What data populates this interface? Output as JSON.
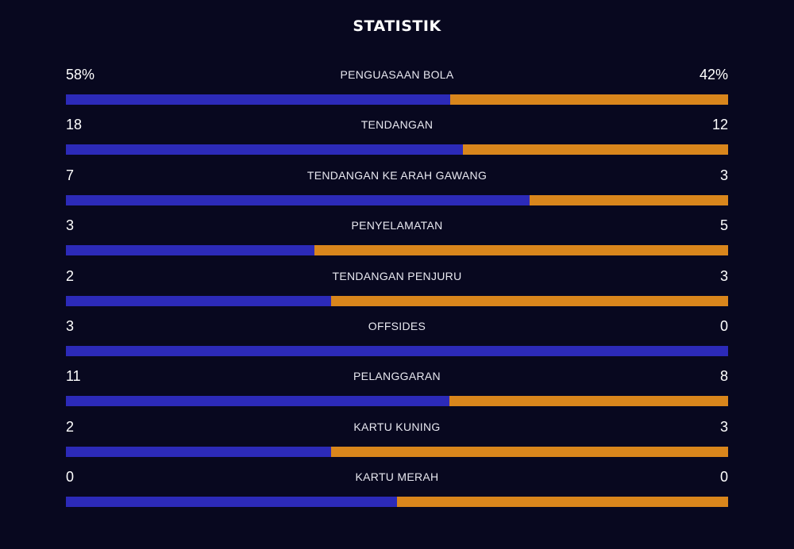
{
  "title": "STATISTIK",
  "colors": {
    "background": "#08081f",
    "home_bar": "#2c2ab8",
    "away_bar": "#d9861c",
    "text": "#ffffff"
  },
  "stats": [
    {
      "label": "PENGUASAAN BOLA",
      "home": "58%",
      "away": "42%",
      "home_share": 0.58
    },
    {
      "label": "TENDANGAN",
      "home": "18",
      "away": "12",
      "home_share": 0.6
    },
    {
      "label": "TENDANGAN KE ARAH GAWANG",
      "home": "7",
      "away": "3",
      "home_share": 0.7
    },
    {
      "label": "PENYELAMATAN",
      "home": "3",
      "away": "5",
      "home_share": 0.375
    },
    {
      "label": "TENDANGAN PENJURU",
      "home": "2",
      "away": "3",
      "home_share": 0.4
    },
    {
      "label": "OFFSIDES",
      "home": "3",
      "away": "0",
      "home_share": 1.0
    },
    {
      "label": "PELANGGARAN",
      "home": "11",
      "away": "8",
      "home_share": 0.579
    },
    {
      "label": "KARTU KUNING",
      "home": "2",
      "away": "3",
      "home_share": 0.4
    },
    {
      "label": "KARTU MERAH",
      "home": "0",
      "away": "0",
      "home_share": 0.5
    }
  ]
}
